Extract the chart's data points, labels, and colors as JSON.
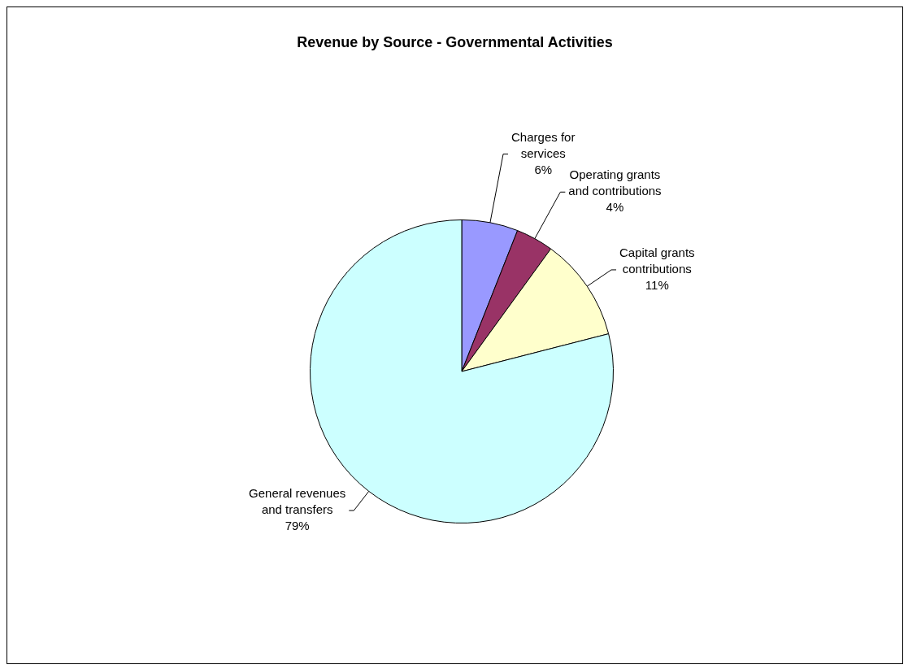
{
  "chart_data": {
    "type": "pie",
    "title": "Revenue by Source - Governmental Activities",
    "categories": [
      "Charges for services",
      "Operating grants and contributions",
      "Capital grants contributions",
      "General revenues and transfers"
    ],
    "values": [
      6,
      4,
      11,
      79
    ],
    "colors": [
      "#9999ff",
      "#993366",
      "#ffffcc",
      "#ccffff"
    ],
    "value_labels": [
      "6%",
      "4%",
      "11%",
      "79%"
    ],
    "legend": false
  }
}
